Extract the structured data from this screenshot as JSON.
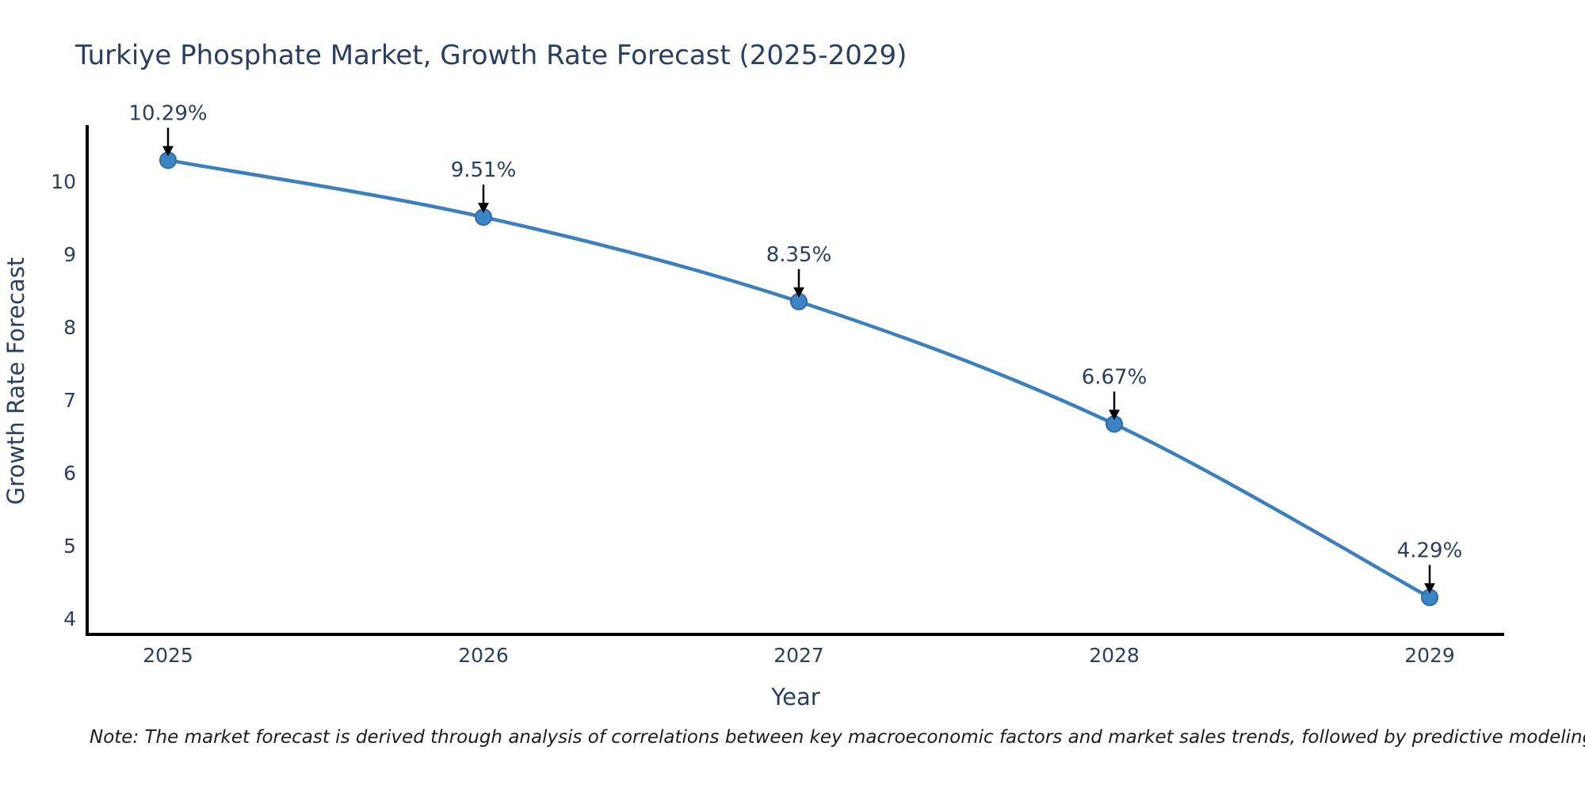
{
  "title": "Turkiye Phosphate Market, Growth Rate Forecast (2025-2029)",
  "note": "Note: The market forecast is derived through analysis of correlations between key macroeconomic factors and market sales trends, followed by predictive modeling to project future sales",
  "colors": {
    "background": "#ffffff",
    "title_text": "#2a3f5f",
    "tick_text": "#2a3f5f",
    "axis_title_text": "#2a3f5f",
    "annotation_text": "#2a3f5f",
    "axis_line": "#000000",
    "arrow": "#000000",
    "line": "#3b7fbd",
    "marker_fill": "#3c84c4",
    "marker_stroke": "#2e6ba4",
    "note_text": "#1c1c1c"
  },
  "chart_data": {
    "type": "line",
    "title": "Turkiye Phosphate Market, Growth Rate Forecast (2025-2029)",
    "xlabel": "Year",
    "ylabel": "Growth Rate Forecast",
    "x": [
      2025,
      2026,
      2027,
      2028,
      2029
    ],
    "values": [
      10.29,
      9.51,
      8.35,
      6.67,
      4.29
    ],
    "point_labels": [
      "10.29%",
      "9.51%",
      "8.35%",
      "6.67%",
      "4.29%"
    ],
    "x_ticks": [
      "2025",
      "2026",
      "2027",
      "2028",
      "2029"
    ],
    "y_ticks": [
      4,
      5,
      6,
      7,
      8,
      9,
      10
    ],
    "xlim": [
      2024.74,
      2029.24
    ],
    "ylim": [
      3.78,
      10.75
    ],
    "grid": false,
    "legend": false,
    "line_style": "smooth",
    "marker": "circle",
    "annotations_have_arrows": true
  }
}
